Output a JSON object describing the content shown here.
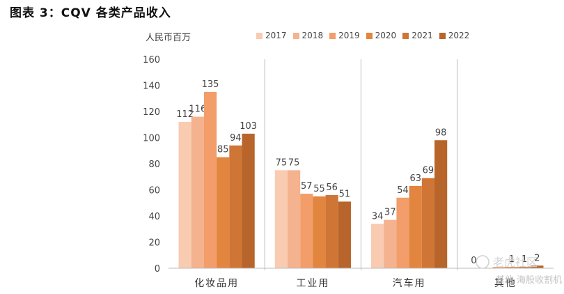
{
  "figure_title": "图表 3：CQV 各类产品收入",
  "chart_data": {
    "type": "bar",
    "unit_label": "人民币百万",
    "categories": [
      "化妆品用",
      "工业用",
      "汽车用",
      "其他"
    ],
    "series": [
      {
        "name": "2017",
        "color": "#f9cbb1",
        "values": [
          112,
          75,
          34,
          0
        ]
      },
      {
        "name": "2018",
        "color": "#f5b28f",
        "values": [
          116,
          75,
          37,
          0
        ]
      },
      {
        "name": "2019",
        "color": "#f29d6a",
        "values": [
          135,
          57,
          54,
          1
        ]
      },
      {
        "name": "2020",
        "color": "#e2853f",
        "values": [
          85,
          55,
          63,
          1
        ]
      },
      {
        "name": "2021",
        "color": "#cf7636",
        "values": [
          94,
          56,
          69,
          1
        ]
      },
      {
        "name": "2022",
        "color": "#b7652a",
        "values": [
          103,
          51,
          98,
          2
        ]
      }
    ],
    "data_labels": [
      [
        "112",
        "116",
        "135",
        "85",
        "94",
        "103"
      ],
      [
        "75",
        "75",
        "57",
        "55",
        "56",
        "51"
      ],
      [
        "34",
        "37",
        "54",
        "63",
        "69",
        "98"
      ],
      [
        "0",
        "",
        "",
        "1",
        "1",
        "2"
      ]
    ],
    "yticks": [
      "0",
      "20",
      "40",
      "60",
      "80",
      "100",
      "120",
      "140",
      "160"
    ],
    "ylim": [
      0,
      160
    ],
    "legend_position": "top",
    "separators": "vertical gray lines between categories"
  },
  "watermark": {
    "text": "老虎社区",
    "sub": "其他 海股收割机"
  }
}
